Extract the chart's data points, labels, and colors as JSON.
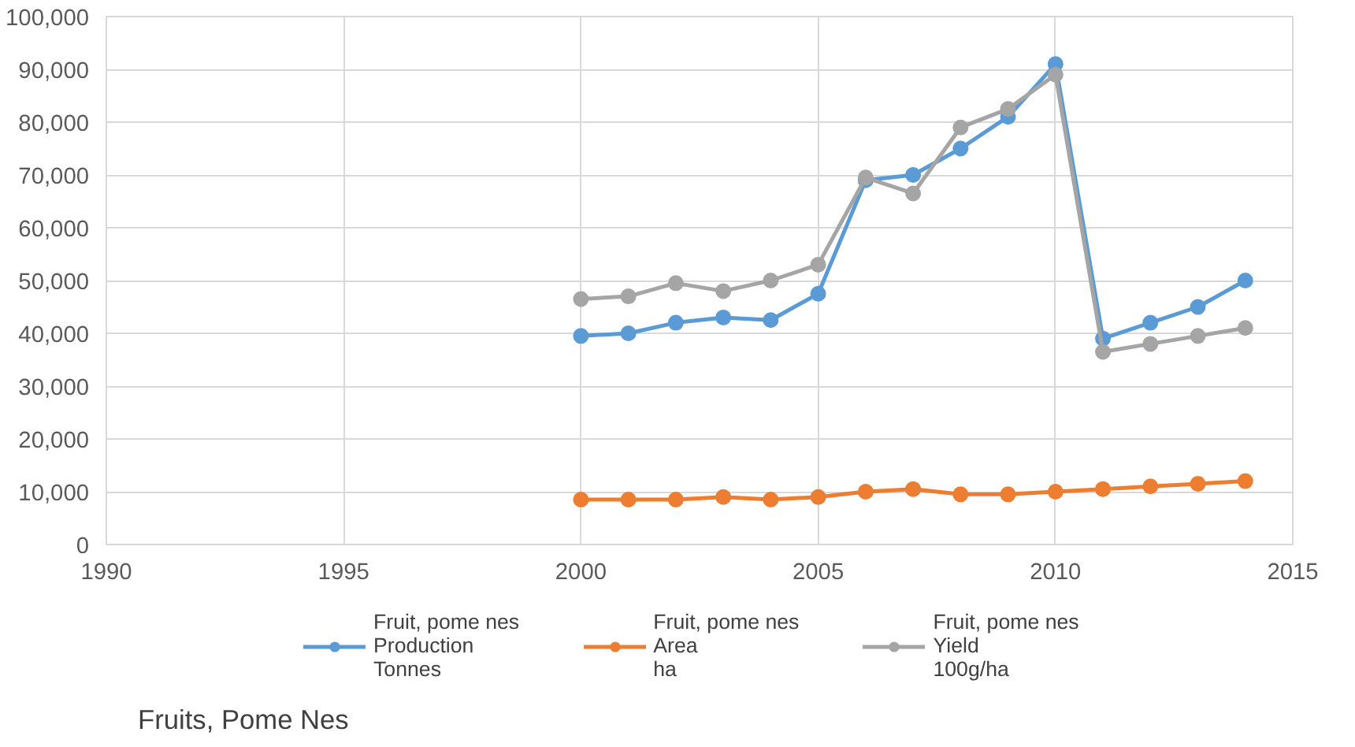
{
  "chart_data": {
    "type": "line",
    "title": "Fruits, Pome Nes",
    "x": [
      2000,
      2001,
      2002,
      2003,
      2004,
      2005,
      2006,
      2007,
      2008,
      2009,
      2010,
      2011,
      2012,
      2013,
      2014
    ],
    "series": [
      {
        "name": "Fruit, pome nes\nProduction\nTonnes",
        "color": "#5b9bd5",
        "values": [
          39500,
          40000,
          42000,
          43000,
          42500,
          47500,
          69000,
          70000,
          75000,
          81000,
          91000,
          39000,
          42000,
          45000,
          50000
        ]
      },
      {
        "name": "Fruit, pome nes\nArea\nha",
        "color": "#ed7d31",
        "values": [
          8500,
          8500,
          8500,
          9000,
          8500,
          9000,
          10000,
          10500,
          9500,
          9500,
          10000,
          10500,
          11000,
          11500,
          12000
        ]
      },
      {
        "name": "Fruit, pome nes\nYield\n100g/ha",
        "color": "#a5a5a5",
        "values": [
          46500,
          47000,
          49500,
          48000,
          50000,
          53000,
          69500,
          66500,
          79000,
          82500,
          89000,
          36500,
          38000,
          39500,
          41000
        ]
      }
    ],
    "xlim": [
      1990,
      2015
    ],
    "xticks": [
      1990,
      1995,
      2000,
      2005,
      2010,
      2015
    ],
    "ylim": [
      0,
      100000
    ],
    "yticks": [
      {
        "value": 0,
        "label": "0"
      },
      {
        "value": 10000,
        "label": "10,000"
      },
      {
        "value": 20000,
        "label": "20,000"
      },
      {
        "value": 30000,
        "label": "30,000"
      },
      {
        "value": 40000,
        "label": "40,000"
      },
      {
        "value": 50000,
        "label": "50,000"
      },
      {
        "value": 60000,
        "label": "60,000"
      },
      {
        "value": 70000,
        "label": "70,000"
      },
      {
        "value": 80000,
        "label": "80,000"
      },
      {
        "value": 90000,
        "label": "90,000"
      },
      {
        "value": 100000,
        "label": "100,000"
      }
    ],
    "grid": true,
    "legend": "bottom",
    "marker": "circle",
    "line_style": "solid"
  }
}
